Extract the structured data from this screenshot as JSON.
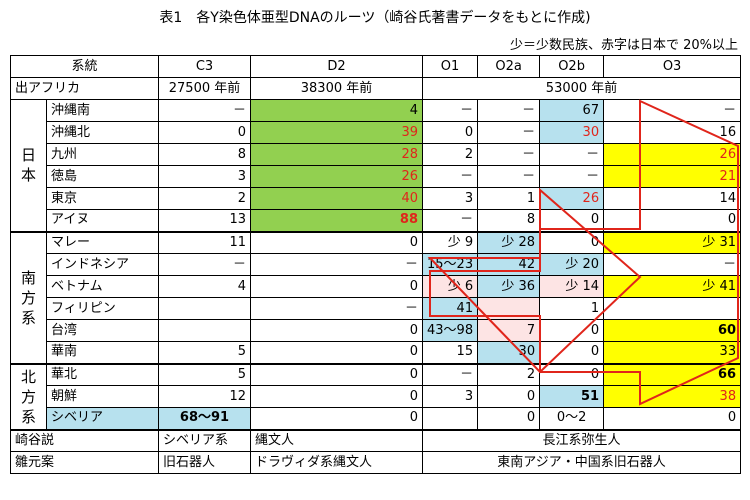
{
  "title": "表1　各Y染色体亜型DNAのルーツ（崎谷氏著書データをもとに作成)",
  "subtitle": "少＝少数民族、赤字は日本で 20%以上",
  "header": {
    "lineage_label": "系統",
    "columns": [
      "C3",
      "D2",
      "O1",
      "O2a",
      "O2b",
      "O3"
    ],
    "out_of_africa_label": "出アフリカ",
    "c3_age": "27500 年前",
    "d2_age": "38300 年前",
    "o_age": "53000 年前"
  },
  "groups": {
    "japan": "日本",
    "south": "南方系",
    "north": "北方系"
  },
  "rows": [
    {
      "name": "沖縄南",
      "c3": "－",
      "d2": "4",
      "o1": "－",
      "o2a": "－",
      "o2b": "67",
      "o3": "－"
    },
    {
      "name": "沖縄北",
      "c3": "0",
      "d2": "39",
      "o1": "0",
      "o2a": "－",
      "o2b": "30",
      "o3": "16"
    },
    {
      "name": "九州",
      "c3": "8",
      "d2": "28",
      "o1": "2",
      "o2a": "－",
      "o2b": "－",
      "o3": "26"
    },
    {
      "name": "徳島",
      "c3": "3",
      "d2": "26",
      "o1": "－",
      "o2a": "－",
      "o2b": "－",
      "o3": "21"
    },
    {
      "name": "東京",
      "c3": "2",
      "d2": "40",
      "o1": "3",
      "o2a": "1",
      "o2b": "26",
      "o3": "14"
    },
    {
      "name": "アイヌ",
      "c3": "13",
      "d2": "88",
      "o1": "－",
      "o2a": "8",
      "o2b": "0",
      "o3": "0"
    },
    {
      "name": "マレー",
      "c3": "11",
      "d2": "0",
      "o1": "少 9",
      "o2a": "少 28",
      "o2b": "0",
      "o3": "少 31"
    },
    {
      "name": "インドネシア",
      "c3": "－",
      "d2": "－",
      "o1": "15～23",
      "o2a": "42",
      "o2b": "少 20",
      "o3": "－"
    },
    {
      "name": "ベトナム",
      "c3": "4",
      "d2": "0",
      "o1": "少 6",
      "o2a": "少 36",
      "o2b": "少 14",
      "o3": "少 41"
    },
    {
      "name": "フィリピン",
      "c3": "",
      "d2": "－",
      "o1": "41",
      "o2a": "",
      "o2b": "1",
      "o3": ""
    },
    {
      "name": "台湾",
      "c3": "",
      "d2": "0",
      "o1": "43～98",
      "o2a": "7",
      "o2b": "0",
      "o3": "60"
    },
    {
      "name": "華南",
      "c3": "5",
      "d2": "0",
      "o1": "15",
      "o2a": "30",
      "o2b": "0",
      "o3": "33"
    },
    {
      "name": "華北",
      "c3": "5",
      "d2": "0",
      "o1": "－",
      "o2a": "2",
      "o2b": "0",
      "o3": "66"
    },
    {
      "name": "朝鮮",
      "c3": "12",
      "d2": "0",
      "o1": "3",
      "o2a": "0",
      "o2b": "51",
      "o3": "38"
    },
    {
      "name": "シベリア",
      "c3": "68～91",
      "d2": "0",
      "o1": "",
      "o2a": "0",
      "o2b": "0～2",
      "o3": "0"
    }
  ],
  "footer": {
    "sakitani_label": "崎谷説",
    "sakitani_c3": "シベリア系",
    "sakitani_d2": "縄文人",
    "sakitani_o": "長江系弥生人",
    "hinamoto_label": "雛元案",
    "hinamoto_c3": "旧石器人",
    "hinamoto_d2": "ドラヴィダ系縄文人",
    "hinamoto_o": "東南アジア・中国系旧石器人"
  },
  "colors": {
    "green": "#92d050",
    "blue": "#b7e1ee",
    "yellow": "#ffff00",
    "pink": "#fde4e4",
    "red": "#e0251b"
  }
}
